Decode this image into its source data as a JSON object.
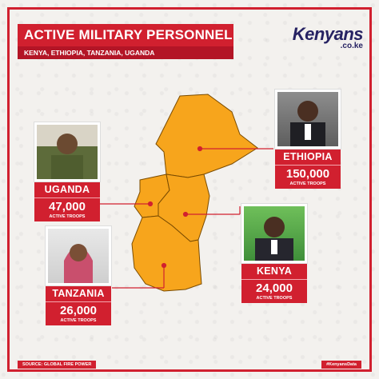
{
  "header": {
    "title": "ACTIVE MILITARY PERSONNEL",
    "subtitle": "KENYA, ETHIOPIA, TANZANIA, UGANDA"
  },
  "logo": {
    "name": "Kenyans",
    "domain": ".co.ke"
  },
  "countries": [
    {
      "name": "UGANDA",
      "value": "47,000",
      "label": "ACTIVE TROOPS"
    },
    {
      "name": "ETHIOPIA",
      "value": "150,000",
      "label": "ACTIVE TROOPS"
    },
    {
      "name": "TANZANIA",
      "value": "26,000",
      "label": "ACTIVE TROOPS"
    },
    {
      "name": "KENYA",
      "value": "24,000",
      "label": "ACTIVE TROOPS"
    }
  ],
  "footer": {
    "source": "SOURCE: GLOBAL FIRE POWER",
    "hashtag": "#KenyansData"
  },
  "colors": {
    "accent": "#d1202f",
    "map_fill": "#f7a51c",
    "logo": "#262262"
  }
}
